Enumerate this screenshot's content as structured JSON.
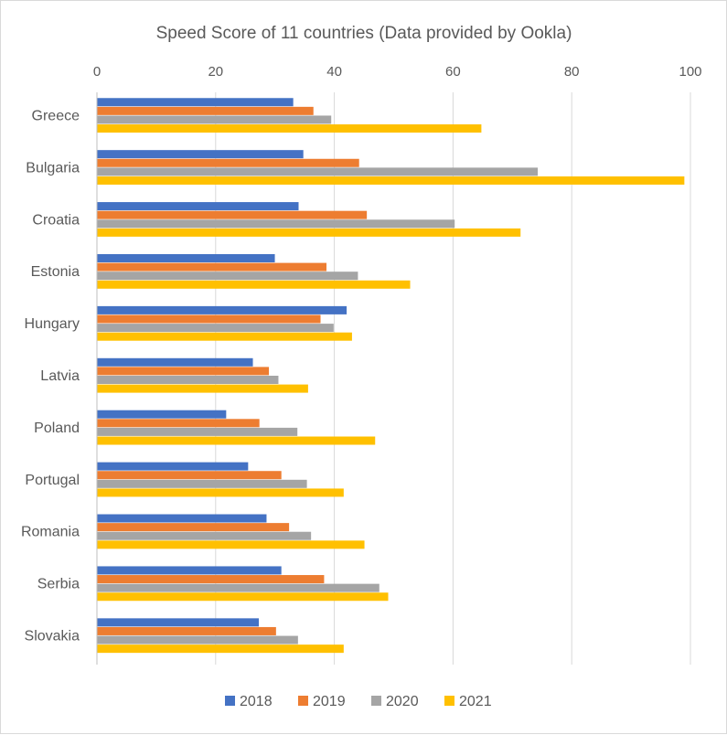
{
  "chart_data": {
    "type": "bar",
    "orientation": "horizontal",
    "title": "Speed Score of 11 countries (Data provided by Ookla)",
    "categories": [
      "Greece",
      "Bulgaria",
      "Croatia",
      "Estonia",
      "Hungary",
      "Latvia",
      "Poland",
      "Portugal",
      "Romania",
      "Serbia",
      "Slovakia"
    ],
    "series": [
      {
        "name": "2018",
        "color": "#4472C4",
        "values": [
          33.0,
          34.7,
          33.9,
          29.9,
          42.0,
          26.2,
          21.7,
          25.4,
          28.5,
          31.0,
          27.2
        ]
      },
      {
        "name": "2019",
        "color": "#ED7D31",
        "values": [
          36.4,
          44.1,
          45.4,
          38.6,
          37.6,
          28.9,
          27.3,
          31.0,
          32.3,
          38.2,
          30.1
        ]
      },
      {
        "name": "2020",
        "color": "#A5A5A5",
        "values": [
          39.4,
          74.2,
          60.2,
          43.9,
          39.8,
          30.5,
          33.7,
          35.3,
          36.0,
          47.5,
          33.8
        ]
      },
      {
        "name": "2021",
        "color": "#FFC000",
        "values": [
          64.7,
          98.9,
          71.3,
          52.7,
          42.9,
          35.5,
          46.8,
          41.5,
          45.0,
          49.0,
          41.5
        ]
      }
    ],
    "xlim": [
      0,
      100
    ],
    "ticks": [
      "0",
      "20",
      "40",
      "60",
      "80",
      "100"
    ],
    "axis_position": "top",
    "grid": true,
    "legend": "bottom"
  }
}
